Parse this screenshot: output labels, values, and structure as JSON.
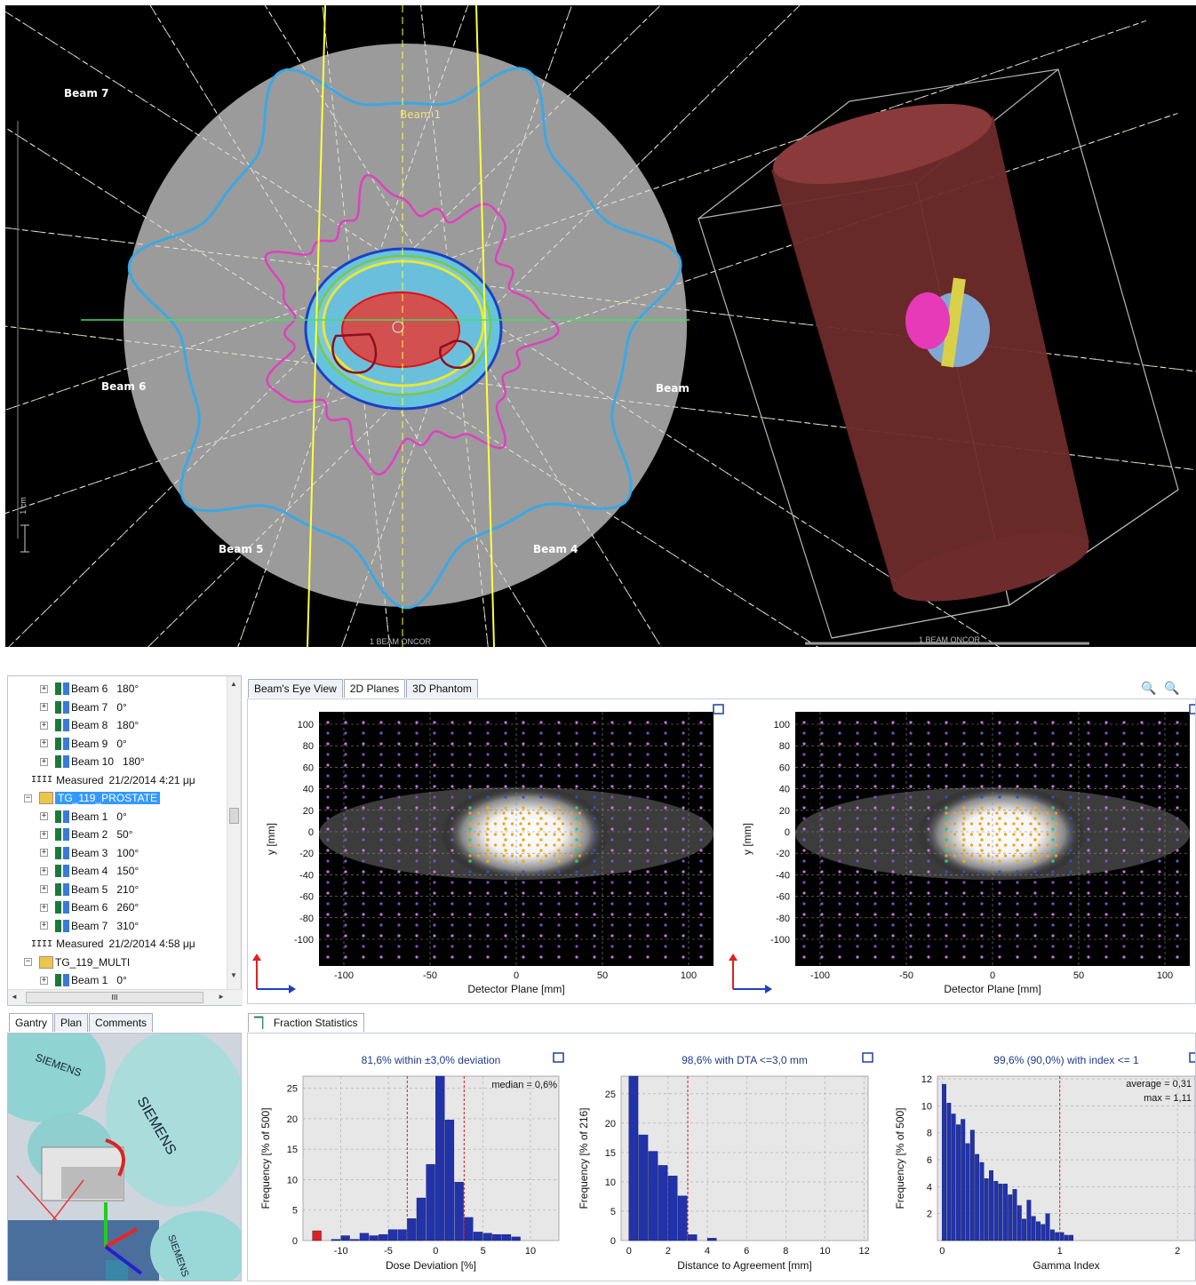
{
  "viewer": {
    "beam_labels": {
      "beam7": "Beam 7",
      "beam1": "Beam 1",
      "beam6": "Beam 6",
      "beam_right": "Beam",
      "beam5": "Beam 5",
      "beam4": "Beam 4"
    },
    "scale_label": "1 cm",
    "footer_left": "1 BEAM ONCOR",
    "footer_right": "1 BEAM ONCOR"
  },
  "tree": {
    "items": [
      {
        "type": "beam",
        "label": "Beam 6",
        "angle": "180°"
      },
      {
        "type": "beam",
        "label": "Beam 7",
        "angle": "0°"
      },
      {
        "type": "beam",
        "label": "Beam 8",
        "angle": "180°"
      },
      {
        "type": "beam",
        "label": "Beam 9",
        "angle": "0°"
      },
      {
        "type": "beam",
        "label": "Beam 10",
        "angle": "180°"
      },
      {
        "type": "measured",
        "label": "Measured",
        "date": "21/2/2014 4:21 μμ"
      },
      {
        "type": "plan",
        "label": "TG_119_PROSTATE",
        "selected": true
      },
      {
        "type": "beam",
        "label": "Beam 1",
        "angle": "0°"
      },
      {
        "type": "beam",
        "label": "Beam 2",
        "angle": "50°"
      },
      {
        "type": "beam",
        "label": "Beam 3",
        "angle": "100°"
      },
      {
        "type": "beam",
        "label": "Beam 4",
        "angle": "150°"
      },
      {
        "type": "beam",
        "label": "Beam 5",
        "angle": "210°"
      },
      {
        "type": "beam",
        "label": "Beam 6",
        "angle": "260°"
      },
      {
        "type": "beam",
        "label": "Beam 7",
        "angle": "310°"
      },
      {
        "type": "measured",
        "label": "Measured",
        "date": "21/2/2014 4:58 μμ"
      },
      {
        "type": "plan",
        "label": "TG_119_MULTI",
        "selected": false
      },
      {
        "type": "beam",
        "label": "Beam 1",
        "angle": "0°"
      }
    ],
    "hscroll_label": "III"
  },
  "view_tabs": [
    {
      "label": "Beam's Eye View",
      "active": false
    },
    {
      "label": "2D Planes",
      "active": true
    },
    {
      "label": "3D Phantom",
      "active": false
    }
  ],
  "planes": {
    "ylabel": "y [mm]",
    "xlabel": "Detector Plane [mm]",
    "yticks": [
      "100",
      "80",
      "60",
      "40",
      "20",
      "0",
      "-20",
      "-40",
      "-60",
      "-80",
      "-100"
    ],
    "xticks": [
      "-100",
      "-50",
      "0",
      "50",
      "100"
    ]
  },
  "lower_tabs": [
    {
      "label": "Gantry",
      "active": true
    },
    {
      "label": "Plan",
      "active": false
    },
    {
      "label": "Comments",
      "active": false
    }
  ],
  "gantry": {
    "brand": "SIEMENS"
  },
  "stats_tab": "Fraction Statistics",
  "chart_data": [
    {
      "type": "bar",
      "title": "81,6% within ±3,0% deviation",
      "xlabel": "Dose Deviation [%]",
      "ylabel": "Frequency [% of 500]",
      "annotation": "median = 0,6%",
      "xlim": [
        -14,
        13
      ],
      "ylim": [
        0,
        27
      ],
      "xticks": [
        -10,
        -5,
        0,
        5,
        10
      ],
      "yticks": [
        0,
        5,
        10,
        15,
        20,
        25
      ],
      "thresholds": [
        -3,
        3
      ],
      "bin_width": 1,
      "x": [
        -12.5,
        -10.5,
        -9.5,
        -8.5,
        -7.5,
        -6.5,
        -5.5,
        -4.5,
        -3.5,
        -2.5,
        -1.5,
        -0.5,
        0.5,
        1.5,
        2.5,
        3.5,
        4.5,
        5.5,
        6.5,
        7.5,
        8.5
      ],
      "values": [
        1.6,
        0.2,
        0.8,
        0.2,
        1.2,
        0.8,
        1.0,
        1.8,
        1.8,
        3.6,
        7.0,
        12.5,
        27,
        19.8,
        9.6,
        3.8,
        1.4,
        1.2,
        1.0,
        1.0,
        0.6
      ],
      "outlier_color": "#e02020",
      "bar_color": "#2233aa"
    },
    {
      "type": "bar",
      "title": "98,6% with DTA <=3,0 mm",
      "xlabel": "Distance to Agreement [mm]",
      "ylabel": "Frequency [% of 216]",
      "xlim": [
        -0.4,
        12.2
      ],
      "ylim": [
        0,
        28
      ],
      "xticks": [
        0,
        2,
        4,
        6,
        8,
        10,
        12
      ],
      "yticks": [
        0,
        5,
        10,
        15,
        20,
        25
      ],
      "thresholds": [
        3
      ],
      "bin_width": 0.5,
      "x": [
        0.25,
        0.75,
        1.25,
        1.75,
        2.25,
        2.75,
        3.25,
        4.25
      ],
      "values": [
        28,
        18,
        15.2,
        12.8,
        11.0,
        7.6,
        1.0,
        0.4
      ],
      "bar_color": "#2233aa"
    },
    {
      "type": "bar",
      "title": "99,6% (90,0%) with index <= 1",
      "xlabel": "Gamma Index",
      "ylabel": "Frequency [% of 500]",
      "annotation_lines": [
        "average = 0,31",
        "max = 1,11"
      ],
      "xlim": [
        -0.04,
        2.15
      ],
      "ylim": [
        0,
        12.2
      ],
      "xticks": [
        0,
        1,
        2
      ],
      "yticks": [
        2,
        4,
        6,
        8,
        10,
        12
      ],
      "thresholds": [
        1
      ],
      "bin_width": 0.04,
      "x": [
        0.02,
        0.06,
        0.1,
        0.14,
        0.18,
        0.22,
        0.26,
        0.3,
        0.34,
        0.38,
        0.42,
        0.46,
        0.5,
        0.54,
        0.58,
        0.62,
        0.66,
        0.7,
        0.74,
        0.78,
        0.82,
        0.86,
        0.9,
        0.94,
        0.98,
        1.02,
        1.06,
        1.1
      ],
      "values": [
        11.6,
        10.2,
        9.4,
        8.6,
        9.0,
        7.2,
        8.2,
        6.4,
        5.8,
        4.6,
        5.2,
        4.4,
        4.2,
        4.2,
        3.4,
        3.8,
        2.6,
        1.6,
        3.0,
        1.8,
        1.4,
        1.2,
        2.0,
        0.8,
        0.6,
        0.6,
        0.4,
        0.4
      ],
      "bar_color": "#2233aa"
    }
  ]
}
